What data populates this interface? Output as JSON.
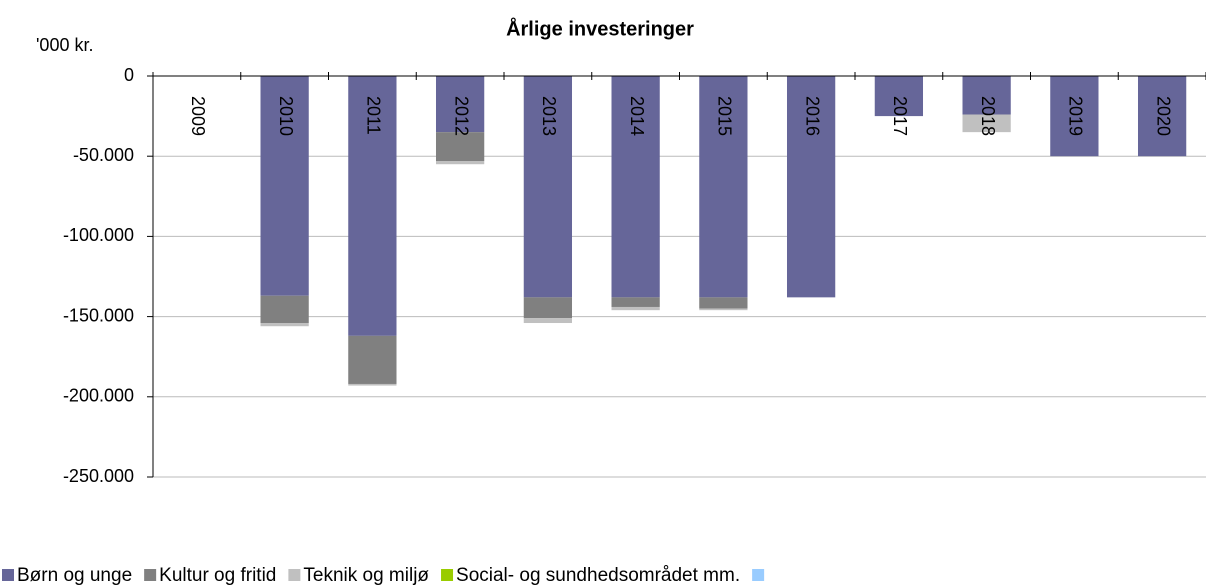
{
  "chart_data": {
    "type": "stacked_bar",
    "title": "Årlige investeringer",
    "y_label": "'000 kr.",
    "categories": [
      "2009",
      "2010",
      "2011",
      "2012",
      "2013",
      "2014",
      "2015",
      "2016",
      "2017",
      "2018",
      "2019",
      "2020"
    ],
    "series": [
      {
        "name": "Børn og unge",
        "color": "#666699",
        "values": [
          0,
          -137000,
          -162000,
          -35000,
          -138000,
          -138000,
          -138000,
          -138000,
          -25000,
          -24000,
          -50000,
          -50000
        ]
      },
      {
        "name": "Kultur og fritid",
        "color": "#808080",
        "values": [
          0,
          -17000,
          -30000,
          -18000,
          -13000,
          -6000,
          -7000,
          0,
          0,
          0,
          0,
          0
        ]
      },
      {
        "name": "Teknik og miljø",
        "color": "#c0c0c0",
        "values": [
          0,
          -2000,
          -1000,
          -2000,
          -3000,
          -2000,
          -1000,
          0,
          0,
          -11000,
          0,
          0
        ]
      },
      {
        "name": "Social- og sundhedsområdet mm.",
        "color": "#99cc00",
        "values": [
          0,
          0,
          0,
          0,
          0,
          0,
          0,
          0,
          0,
          0,
          0,
          0
        ]
      },
      {
        "color": "#99ccff",
        "values": [
          0,
          0,
          0,
          0,
          0,
          0,
          0,
          0,
          0,
          0,
          0,
          0
        ]
      }
    ],
    "ylim": [
      -250000,
      0
    ],
    "yticks": [
      0,
      {
        "value": -50000,
        "label": "-50.000"
      },
      {
        "value": -100000,
        "label": "-100.000"
      },
      {
        "value": -150000,
        "label": "-150.000"
      },
      {
        "value": -200000,
        "label": "-200.000"
      },
      {
        "value": -250000,
        "label": "-250.000"
      }
    ],
    "grid": true
  }
}
